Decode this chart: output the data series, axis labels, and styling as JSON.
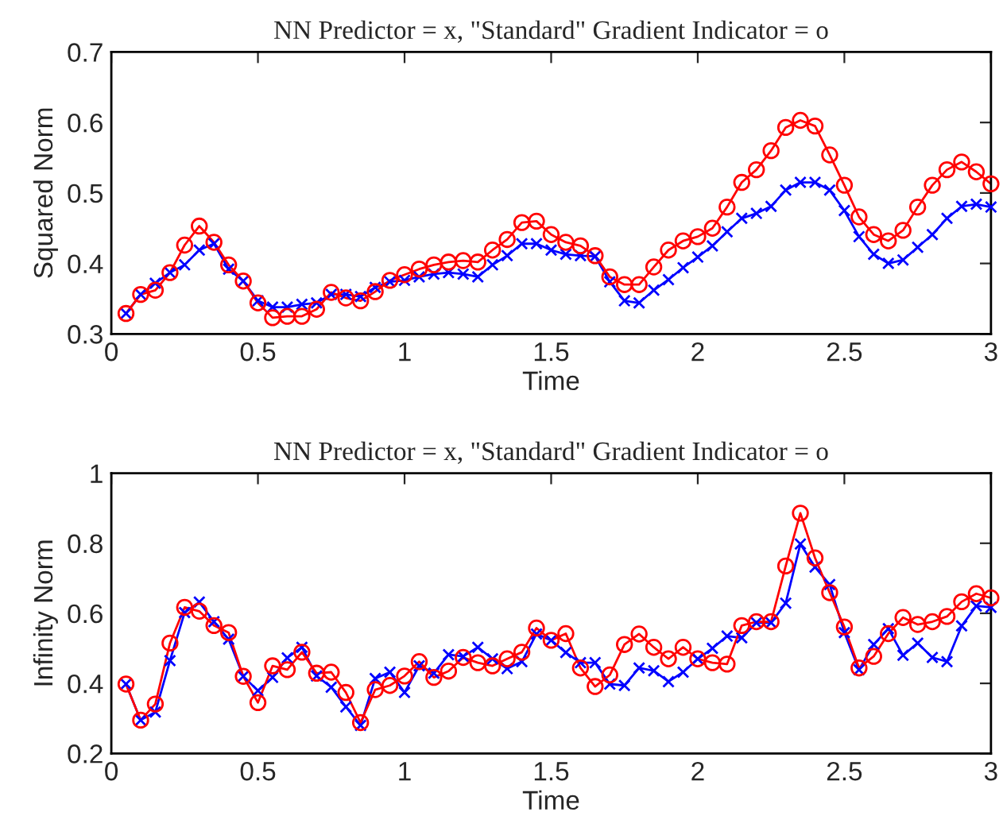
{
  "chart_data": [
    {
      "type": "line",
      "title": "NN Predictor = x, \"Standard\" Gradient Indicator = o",
      "xlabel": "Time",
      "ylabel": "Squared Norm",
      "x": [
        0.05,
        0.1,
        0.15,
        0.2,
        0.25,
        0.3,
        0.35,
        0.4,
        0.45,
        0.5,
        0.55,
        0.6,
        0.65,
        0.7,
        0.75,
        0.8,
        0.85,
        0.9,
        0.95,
        1.0,
        1.05,
        1.1,
        1.15,
        1.2,
        1.25,
        1.3,
        1.35,
        1.4,
        1.45,
        1.5,
        1.55,
        1.6,
        1.65,
        1.7,
        1.75,
        1.8,
        1.85,
        1.9,
        1.95,
        2.0,
        2.05,
        2.1,
        2.15,
        2.2,
        2.25,
        2.3,
        2.35,
        2.4,
        2.45,
        2.5,
        2.55,
        2.6,
        2.65,
        2.7,
        2.75,
        2.8,
        2.85,
        2.9,
        2.95,
        3.0
      ],
      "xlim": [
        0,
        3
      ],
      "xticks": [
        0,
        0.5,
        1,
        1.5,
        2,
        2.5,
        3
      ],
      "ylim": [
        0.3,
        0.7
      ],
      "yticks": [
        0.3,
        0.4,
        0.5,
        0.6,
        0.7
      ],
      "grid": false,
      "line_style": "solid",
      "series": [
        {
          "color": "#0000ff",
          "marker": "cross",
          "values": [
            0.329,
            0.356,
            0.372,
            0.387,
            0.398,
            0.419,
            0.428,
            0.392,
            0.375,
            0.347,
            0.338,
            0.338,
            0.342,
            0.344,
            0.356,
            0.356,
            0.353,
            0.366,
            0.374,
            0.376,
            0.381,
            0.385,
            0.387,
            0.385,
            0.381,
            0.398,
            0.411,
            0.428,
            0.428,
            0.419,
            0.413,
            0.411,
            0.41,
            0.374,
            0.347,
            0.344,
            0.362,
            0.377,
            0.394,
            0.409,
            0.425,
            0.445,
            0.464,
            0.471,
            0.481,
            0.504,
            0.515,
            0.515,
            0.504,
            0.475,
            0.438,
            0.413,
            0.4,
            0.405,
            0.423,
            0.441,
            0.464,
            0.481,
            0.484,
            0.48
          ]
        },
        {
          "color": "#ff0000",
          "marker": "circle",
          "values": [
            0.329,
            0.356,
            0.362,
            0.387,
            0.426,
            0.453,
            0.43,
            0.398,
            0.375,
            0.344,
            0.323,
            0.325,
            0.325,
            0.335,
            0.359,
            0.351,
            0.347,
            0.36,
            0.376,
            0.384,
            0.392,
            0.398,
            0.402,
            0.404,
            0.402,
            0.419,
            0.434,
            0.458,
            0.46,
            0.441,
            0.43,
            0.425,
            0.411,
            0.381,
            0.37,
            0.37,
            0.395,
            0.419,
            0.432,
            0.438,
            0.45,
            0.48,
            0.515,
            0.533,
            0.56,
            0.593,
            0.603,
            0.595,
            0.554,
            0.511,
            0.466,
            0.441,
            0.432,
            0.447,
            0.48,
            0.511,
            0.533,
            0.544,
            0.53,
            0.513
          ]
        }
      ]
    },
    {
      "type": "line",
      "title": "NN Predictor = x, \"Standard\" Gradient Indicator = o",
      "xlabel": "Time",
      "ylabel": "Infinity Norm",
      "x": [
        0.05,
        0.1,
        0.15,
        0.2,
        0.25,
        0.3,
        0.35,
        0.4,
        0.45,
        0.5,
        0.55,
        0.6,
        0.65,
        0.7,
        0.75,
        0.8,
        0.85,
        0.9,
        0.95,
        1.0,
        1.05,
        1.1,
        1.15,
        1.2,
        1.25,
        1.3,
        1.35,
        1.4,
        1.45,
        1.5,
        1.55,
        1.6,
        1.65,
        1.7,
        1.75,
        1.8,
        1.85,
        1.9,
        1.95,
        2.0,
        2.05,
        2.1,
        2.15,
        2.2,
        2.25,
        2.3,
        2.35,
        2.4,
        2.45,
        2.5,
        2.55,
        2.6,
        2.65,
        2.7,
        2.75,
        2.8,
        2.85,
        2.9,
        2.95,
        3.0
      ],
      "xlim": [
        0,
        3
      ],
      "xticks": [
        0,
        0.5,
        1,
        1.5,
        2,
        2.5,
        3
      ],
      "ylim": [
        0.2,
        1
      ],
      "yticks": [
        0.2,
        0.4,
        0.6,
        0.8,
        1
      ],
      "grid": false,
      "line_style": "solid",
      "series": [
        {
          "color": "#0000ff",
          "marker": "cross",
          "values": [
            0.398,
            0.295,
            0.318,
            0.465,
            0.602,
            0.632,
            0.576,
            0.526,
            0.42,
            0.379,
            0.417,
            0.473,
            0.503,
            0.421,
            0.389,
            0.333,
            0.28,
            0.414,
            0.432,
            0.374,
            0.45,
            0.429,
            0.482,
            0.477,
            0.503,
            0.47,
            0.442,
            0.462,
            0.541,
            0.523,
            0.488,
            0.459,
            0.459,
            0.398,
            0.394,
            0.444,
            0.436,
            0.405,
            0.432,
            0.47,
            0.5,
            0.535,
            0.53,
            0.573,
            0.573,
            0.629,
            0.798,
            0.732,
            0.682,
            0.545,
            0.439,
            0.511,
            0.556,
            0.48,
            0.515,
            0.474,
            0.462,
            0.564,
            0.621,
            0.617
          ]
        },
        {
          "color": "#ff0000",
          "marker": "circle",
          "values": [
            0.398,
            0.295,
            0.341,
            0.515,
            0.617,
            0.606,
            0.565,
            0.545,
            0.42,
            0.345,
            0.45,
            0.439,
            0.489,
            0.429,
            0.432,
            0.374,
            0.288,
            0.382,
            0.394,
            0.421,
            0.462,
            0.417,
            0.435,
            0.474,
            0.459,
            0.45,
            0.47,
            0.489,
            0.558,
            0.523,
            0.542,
            0.444,
            0.391,
            0.424,
            0.511,
            0.541,
            0.503,
            0.47,
            0.503,
            0.47,
            0.459,
            0.455,
            0.565,
            0.576,
            0.576,
            0.735,
            0.886,
            0.758,
            0.659,
            0.561,
            0.444,
            0.477,
            0.542,
            0.588,
            0.568,
            0.576,
            0.591,
            0.633,
            0.656,
            0.644
          ]
        }
      ]
    }
  ]
}
